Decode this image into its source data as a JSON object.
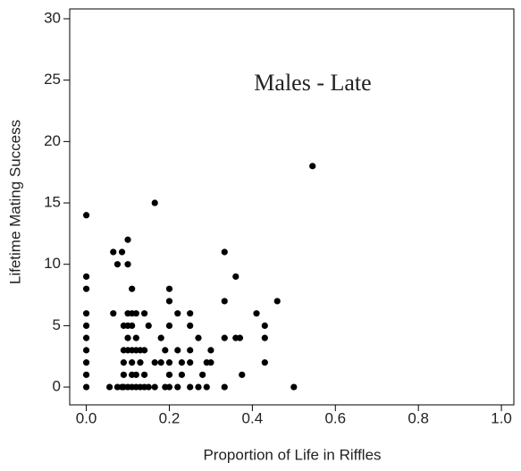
{
  "chart_data": {
    "type": "scatter",
    "annotation": "Males - Late",
    "x_label": "Proportion of Life in Riffles",
    "y_label": "Lifetime Mating Success",
    "xlim": [
      -0.04,
      1.03
    ],
    "ylim": [
      -1.45,
      30.8
    ],
    "xticks": [
      {
        "value": 0,
        "label": "0.0"
      },
      {
        "value": 0.2,
        "label": "0.2"
      },
      {
        "value": 0.4,
        "label": "0.4"
      },
      {
        "value": 0.6,
        "label": "0.6"
      },
      {
        "value": 0.8,
        "label": "0.8"
      },
      {
        "value": 1,
        "label": "1.0"
      }
    ],
    "yticks": [
      0,
      5,
      10,
      15,
      20,
      25,
      30
    ],
    "color": "#000000",
    "x": [
      0,
      0,
      0,
      0,
      0,
      0,
      0,
      0,
      0,
      0,
      0.056,
      0.065,
      0.065,
      0.075,
      0.075,
      0.086,
      0.086,
      0.09,
      0.09,
      0.09,
      0.09,
      0.09,
      0.1,
      0.1,
      0.1,
      0.1,
      0.1,
      0.1,
      0.1,
      0.11,
      0.11,
      0.11,
      0.11,
      0.11,
      0.11,
      0.11,
      0.12,
      0.12,
      0.12,
      0.12,
      0.12,
      0.13,
      0.13,
      0.13,
      0.14,
      0.14,
      0.14,
      0.14,
      0.15,
      0.15,
      0.165,
      0.165,
      0.165,
      0.18,
      0.18,
      0.19,
      0.19,
      0.2,
      0.2,
      0.2,
      0.2,
      0.2,
      0.2,
      0.22,
      0.22,
      0.22,
      0.23,
      0.23,
      0.25,
      0.25,
      0.25,
      0.25,
      0.25,
      0.27,
      0.27,
      0.28,
      0.29,
      0.29,
      0.3,
      0.3,
      0.333,
      0.333,
      0.333,
      0.333,
      0.36,
      0.36,
      0.37,
      0.375,
      0.41,
      0.43,
      0.43,
      0.43,
      0.46,
      0.5,
      0.545
    ],
    "values": [
      0,
      1,
      2,
      3,
      4,
      5,
      6,
      8,
      9,
      14,
      0,
      6,
      11,
      10,
      0,
      0,
      11,
      0,
      1,
      2,
      3,
      5,
      0,
      3,
      4,
      5,
      6,
      10,
      12,
      0,
      1,
      2,
      3,
      5,
      6,
      8,
      0,
      1,
      3,
      4,
      6,
      0,
      2,
      3,
      0,
      1,
      3,
      6,
      0,
      5,
      2,
      15,
      0,
      2,
      4,
      3,
      0,
      0,
      1,
      2,
      5,
      7,
      8,
      0,
      3,
      6,
      1,
      2,
      0,
      2,
      3,
      5,
      6,
      0,
      4,
      1,
      0,
      2,
      2,
      3,
      0,
      4,
      7,
      11,
      4,
      9,
      4,
      1,
      6,
      2,
      4,
      5,
      7,
      0,
      18
    ]
  }
}
